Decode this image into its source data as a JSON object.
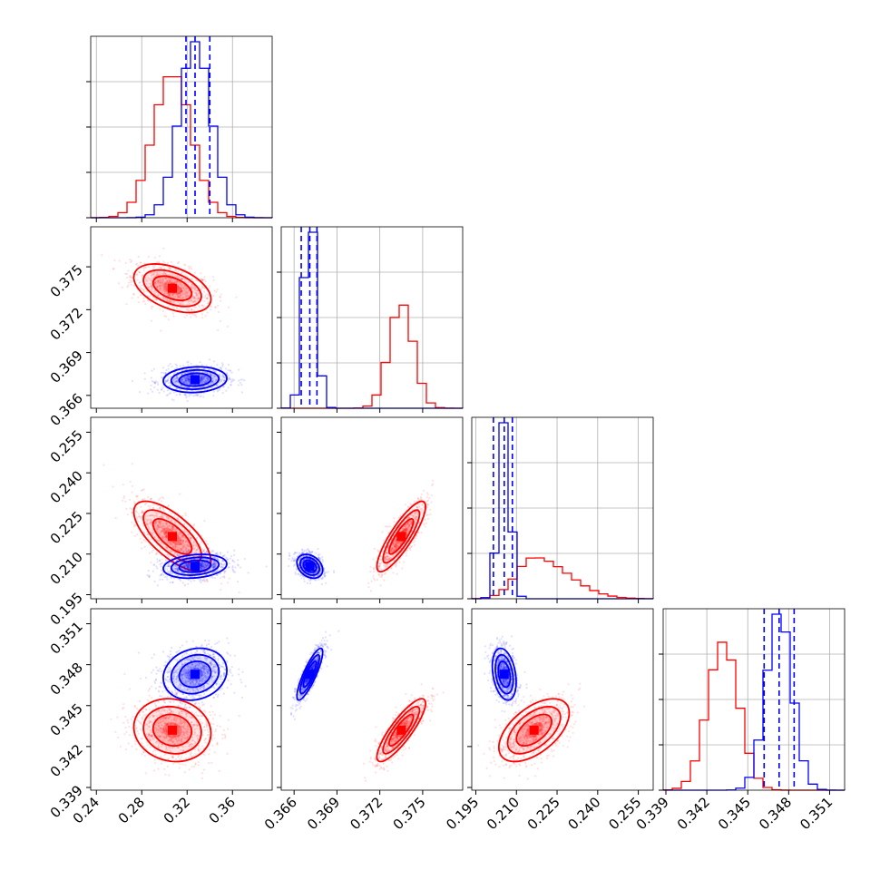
{
  "figure": {
    "type": "corner plot"
  },
  "colors": {
    "red": "#ff0000",
    "blue": "#0000ff",
    "grid": "#b0b0b0",
    "axes": "#000000"
  },
  "chart_data": {
    "type": "corner",
    "params": [
      {
        "ticks": [
          0.24,
          0.28,
          0.32,
          0.36
        ],
        "tick_labels": [
          "0.24",
          "0.28",
          "0.32",
          "0.36"
        ],
        "range": [
          0.235,
          0.395
        ]
      },
      {
        "ticks": [
          0.366,
          0.369,
          0.372,
          0.375
        ],
        "tick_labels": [
          "0.366",
          "0.369",
          "0.372",
          "0.375"
        ],
        "range": [
          0.3651,
          0.3778
        ]
      },
      {
        "ticks": [
          0.195,
          0.21,
          0.225,
          0.24,
          0.255
        ],
        "tick_labels": [
          "0.195",
          "0.210",
          "0.225",
          "0.240",
          "0.255"
        ],
        "range": [
          0.1935,
          0.2605
        ]
      },
      {
        "ticks": [
          0.339,
          0.342,
          0.345,
          0.348,
          0.351
        ],
        "tick_labels": [
          "0.339",
          "0.342",
          "0.345",
          "0.348",
          "0.351"
        ],
        "range": [
          0.3388,
          0.3521
        ]
      }
    ],
    "series": [
      {
        "name": "red",
        "color": "#ff0000",
        "mean": [
          0.307,
          0.3735,
          0.2165,
          0.3432
        ],
        "std": [
          0.017,
          0.00085,
          0.0065,
          0.00115
        ],
        "corr": {
          "0-1": -0.45,
          "0-2": -0.7,
          "0-3": -0.1,
          "1-2": 0.85,
          "1-3": 0.85,
          "2-3": 0.55
        }
      },
      {
        "name": "blue",
        "color": "#0000ff",
        "mean": [
          0.327,
          0.3671,
          0.2055,
          0.3473
        ],
        "std": [
          0.014,
          0.00045,
          0.0022,
          0.00095
        ],
        "corr": {
          "0-1": 0.1,
          "0-2": 0.2,
          "0-3": 0.15,
          "1-2": -0.3,
          "1-3": 0.85,
          "2-3": -0.3
        }
      }
    ],
    "quantile_lines": {
      "color": "#0000ff",
      "values": [
        [
          0.319,
          0.327,
          0.34
        ],
        [
          0.3665,
          0.3671,
          0.3676
        ],
        [
          0.2015,
          0.2055,
          0.2085
        ],
        [
          0.3462,
          0.3473,
          0.3484
        ]
      ]
    },
    "grid": true
  }
}
